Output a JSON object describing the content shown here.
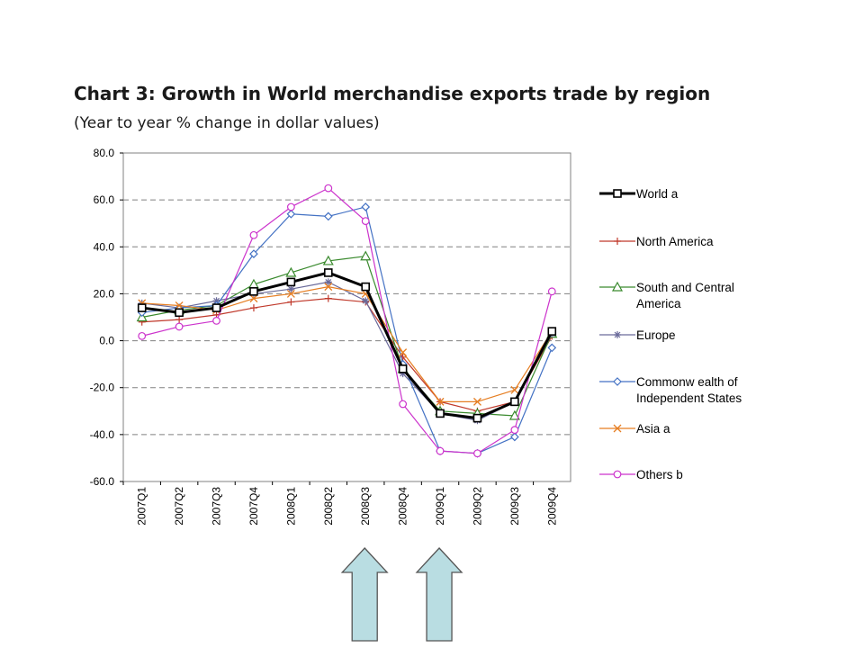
{
  "title": "Chart 3: Growth in World merchandise exports trade by region",
  "subtitle": "(Year to year % change in dollar values)",
  "colors": {
    "arrow_fill": "#b9dde2",
    "arrow_stroke": "#555555",
    "gridline": "#808080"
  },
  "chart_data": {
    "type": "line",
    "title": "Chart 3: Growth in World merchandise exports trade by region",
    "subtitle": "(Year to year % change in dollar values)",
    "xlabel": "",
    "ylabel": "",
    "ylim": [
      -60,
      80
    ],
    "yticks": [
      80,
      60,
      40,
      20,
      0,
      -20,
      -40,
      -60
    ],
    "ytick_labels": [
      "80.0",
      "60.0",
      "40.0",
      "20.0",
      "0.0",
      "-20.0",
      "-40.0",
      "-60.0"
    ],
    "grid": "horizontal dashed",
    "legend_position": "right",
    "categories": [
      "2007Q1",
      "2007Q2",
      "2007Q3",
      "2007Q4",
      "2008Q1",
      "2008Q2",
      "2008Q3",
      "2008Q4",
      "2009Q1",
      "2009Q2",
      "2009Q3",
      "2009Q4"
    ],
    "series": [
      {
        "name": "World  a",
        "color": "#000000",
        "marker": "square",
        "width": 3,
        "values": [
          14,
          12,
          14,
          21,
          25,
          29,
          23,
          -12,
          -31,
          -33,
          -26,
          4
        ]
      },
      {
        "name": "North America",
        "color": "#c0392b",
        "marker": "plus",
        "width": 1.2,
        "values": [
          8,
          9,
          11,
          14,
          16.5,
          18,
          16.5,
          -7,
          -26,
          -30,
          -26,
          2
        ]
      },
      {
        "name": "South and Central America",
        "color": "#3a8a2e",
        "marker": "triangle",
        "width": 1.2,
        "values": [
          10,
          13,
          15,
          24,
          29,
          34,
          36,
          -12,
          -30,
          -31,
          -32,
          3
        ]
      },
      {
        "name": "Europe",
        "color": "#6a6a9a",
        "marker": "star",
        "width": 1.2,
        "values": [
          16,
          14,
          17,
          20,
          22,
          25,
          17,
          -14,
          -31,
          -34,
          -26,
          3
        ]
      },
      {
        "name": "Commonwealth of Independent States",
        "color": "#4472c4",
        "marker": "diamond",
        "width": 1.2,
        "values": [
          12,
          14,
          15,
          37,
          54,
          53,
          57,
          -10,
          -47,
          -48,
          -41,
          -3
        ]
      },
      {
        "name": "Asia  a",
        "color": "#e67e22",
        "marker": "x",
        "width": 1.2,
        "values": [
          16,
          15,
          13,
          18,
          20,
          23,
          20,
          -5,
          -26,
          -26,
          -21,
          4
        ]
      },
      {
        "name": "Others  b",
        "color": "#cc33cc",
        "marker": "circle",
        "width": 1.2,
        "values": [
          2,
          6,
          8.5,
          45,
          57,
          65,
          51,
          -27,
          -47,
          -48,
          -38,
          21
        ]
      }
    ],
    "legend": [
      {
        "lines": [
          "World  a"
        ]
      },
      {
        "lines": [
          "North America"
        ]
      },
      {
        "lines": [
          "South and Central",
          "America"
        ]
      },
      {
        "lines": [
          "Europe"
        ]
      },
      {
        "lines": [
          "Commonw ealth of",
          "Independent States"
        ]
      },
      {
        "lines": [
          "Asia  a"
        ]
      },
      {
        "lines": [
          "Others  b"
        ]
      }
    ],
    "annotations": [
      {
        "type": "up-arrow",
        "below_category": "2008Q3"
      },
      {
        "type": "up-arrow",
        "below_category": "2009Q1"
      }
    ]
  }
}
